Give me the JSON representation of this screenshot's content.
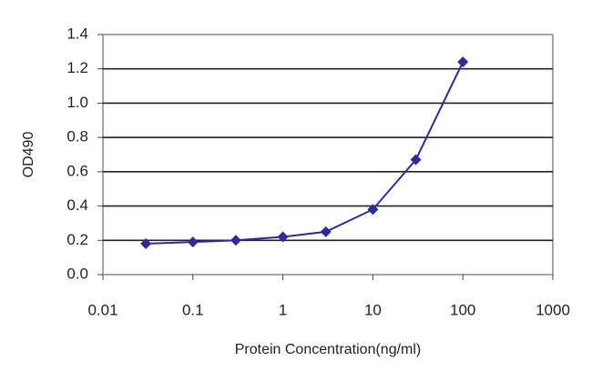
{
  "chart_data": {
    "type": "scatter-line",
    "x_label": "Protein Concentration(ng/ml)",
    "y_label": "OD490",
    "x": [
      0.03,
      0.1,
      0.3,
      1,
      3,
      10,
      30,
      100
    ],
    "series": [
      {
        "color": "#2b2b9c",
        "values": [
          0.18,
          0.19,
          0.2,
          0.22,
          0.25,
          0.38,
          0.67,
          1.24
        ]
      }
    ],
    "xscale": "log",
    "xlim": [
      0.01,
      1000
    ],
    "xticks": [
      0.01,
      0.1,
      1,
      10,
      100,
      1000
    ],
    "ylim": [
      0,
      1.4
    ],
    "yticks": [
      {
        "value": 0,
        "label": "0.0"
      },
      0.2,
      0.4,
      0.6,
      0.8,
      {
        "value": 1,
        "label": "1.0"
      },
      1.2,
      1.4
    ],
    "grid": true
  }
}
